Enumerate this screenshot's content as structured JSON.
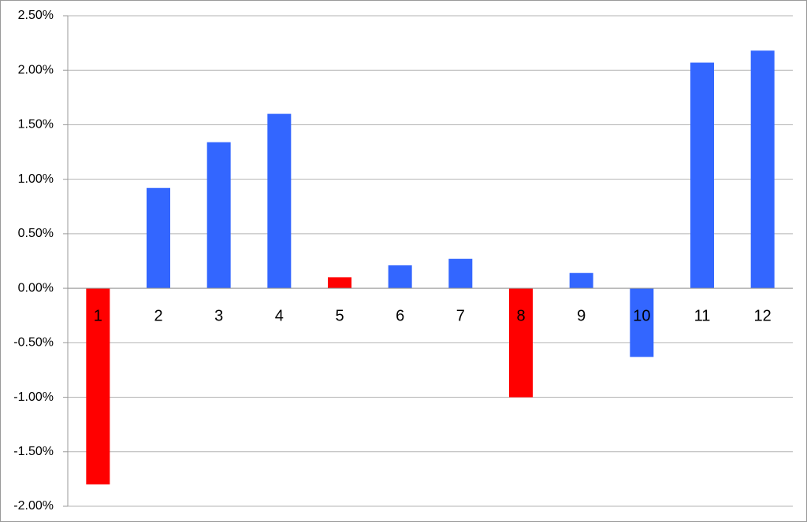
{
  "chart_data": {
    "type": "bar",
    "categories": [
      "1",
      "2",
      "3",
      "4",
      "5",
      "6",
      "7",
      "8",
      "9",
      "10",
      "11",
      "12"
    ],
    "values": [
      -1.8,
      0.92,
      1.34,
      1.6,
      0.1,
      0.21,
      0.27,
      -1.0,
      0.14,
      -0.63,
      2.07,
      2.18
    ],
    "colors": [
      "#ff0000",
      "#3366ff",
      "#3366ff",
      "#3366ff",
      "#ff0000",
      "#3366ff",
      "#3366ff",
      "#ff0000",
      "#3366ff",
      "#3366ff",
      "#3366ff",
      "#3366ff"
    ],
    "ylim": [
      -2,
      2.5
    ],
    "yticks": [
      {
        "value": -2,
        "label": "-2.00%"
      },
      {
        "value": -1.5,
        "label": "-1.50%"
      },
      {
        "value": -1,
        "label": "-1.00%"
      },
      {
        "value": -0.5,
        "label": "-0.50%"
      },
      {
        "value": 0,
        "label": "0.00%"
      },
      {
        "value": 0.5,
        "label": "0.50%"
      },
      {
        "value": 1,
        "label": "1.00%"
      },
      {
        "value": 1.5,
        "label": "1.50%"
      },
      {
        "value": 2,
        "label": "2.00%"
      },
      {
        "value": 2.5,
        "label": "2.50%"
      }
    ],
    "grid": true
  }
}
